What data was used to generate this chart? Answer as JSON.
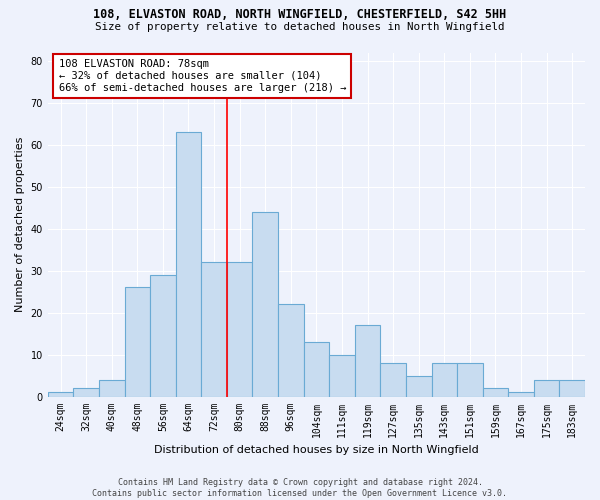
{
  "title1": "108, ELVASTON ROAD, NORTH WINGFIELD, CHESTERFIELD, S42 5HH",
  "title2": "Size of property relative to detached houses in North Wingfield",
  "xlabel": "Distribution of detached houses by size in North Wingfield",
  "ylabel": "Number of detached properties",
  "bin_labels": [
    "24sqm",
    "32sqm",
    "40sqm",
    "48sqm",
    "56sqm",
    "64sqm",
    "72sqm",
    "80sqm",
    "88sqm",
    "96sqm",
    "104sqm",
    "111sqm",
    "119sqm",
    "127sqm",
    "135sqm",
    "143sqm",
    "151sqm",
    "159sqm",
    "167sqm",
    "175sqm",
    "183sqm"
  ],
  "bar_values": [
    1,
    2,
    4,
    26,
    29,
    63,
    32,
    32,
    44,
    22,
    13,
    10,
    17,
    8,
    5,
    8,
    8,
    2,
    1,
    4,
    4
  ],
  "bar_color": "#c8dcf0",
  "bar_edge_color": "#6aaad4",
  "annotation_text": "108 ELVASTON ROAD: 78sqm\n← 32% of detached houses are smaller (104)\n66% of semi-detached houses are larger (218) →",
  "annotation_box_color": "#ffffff",
  "annotation_box_edge_color": "#cc0000",
  "footer_text": "Contains HM Land Registry data © Crown copyright and database right 2024.\nContains public sector information licensed under the Open Government Licence v3.0.",
  "ylim_max": 82,
  "ytick_max": 80,
  "background_color": "#eef2fc",
  "grid_color": "#ffffff",
  "red_line_bar_index": 6
}
